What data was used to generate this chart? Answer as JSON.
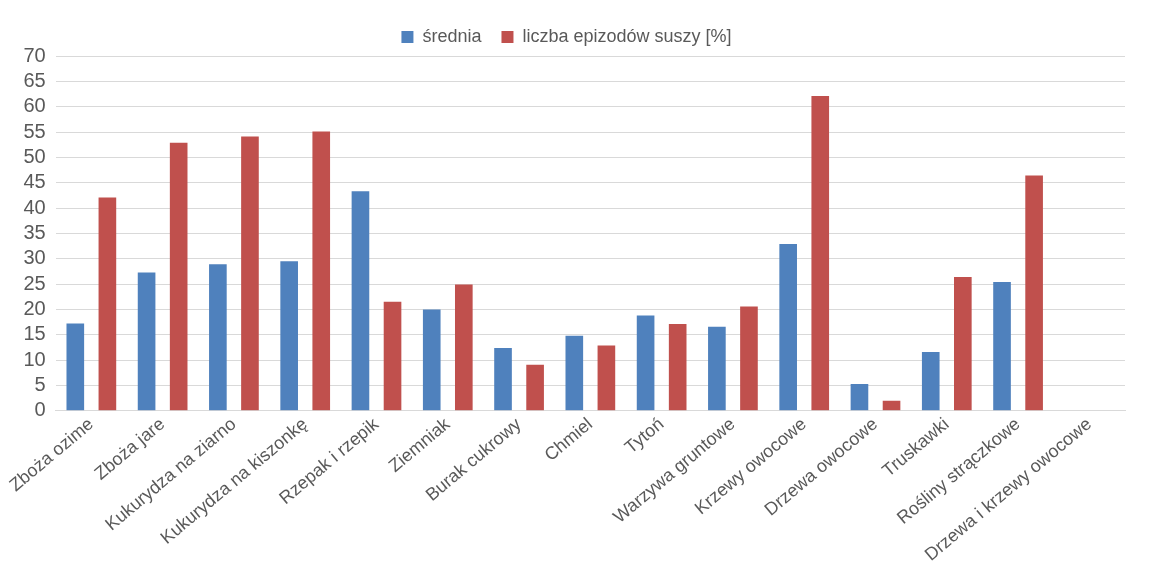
{
  "chart_data": {
    "type": "bar",
    "categories": [
      "Zboża ozime",
      "Zboża jare",
      "Kukurydza na ziarno",
      "Kukurydza na kiszonkę",
      "Rzepak i rzepik",
      "Ziemniak",
      "Burak cukrowy",
      "Chmiel",
      "Tytoń",
      "Warzywa gruntowe",
      "Krzewy owocowe",
      "Drzewa owocowe",
      "Truskawki",
      "Rośliny strączkowe",
      "Drzewa i krzewy owocowe"
    ],
    "series": [
      {
        "name": "średnia",
        "color": "#4f81bd",
        "values": [
          17.2,
          27.3,
          28.9,
          29.5,
          43.3,
          20,
          12.4,
          14.8,
          18.8,
          16.6,
          32.9,
          5.3,
          11.6,
          25.4,
          null
        ]
      },
      {
        "name": "liczba epizodów suszy [%]",
        "color": "#c0504d",
        "values": [
          42.1,
          52.9,
          54.1,
          55.1,
          21.5,
          24.9,
          9.1,
          12.9,
          17.1,
          20.6,
          62.1,
          2,
          26.4,
          46.4,
          null
        ]
      }
    ],
    "ylim": [
      0,
      70
    ],
    "yticks": [
      0,
      5,
      10,
      15,
      20,
      25,
      30,
      35,
      40,
      45,
      50,
      55,
      60,
      65,
      70
    ],
    "grid": "y",
    "legend": "top"
  }
}
